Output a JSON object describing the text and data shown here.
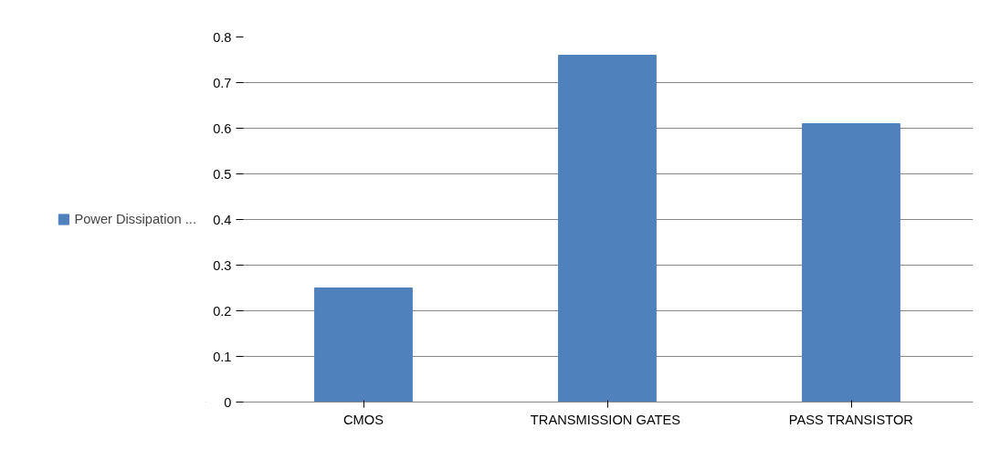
{
  "chart_data": {
    "type": "bar",
    "categories": [
      "CMOS",
      "TRANSMISSION  GATES",
      "PASS TRANSISTOR"
    ],
    "series": [
      {
        "name": "Power Dissipation ...",
        "color": "#4f81bd",
        "values": [
          0.25,
          0.76,
          0.61
        ]
      }
    ],
    "ylim": [
      0,
      0.8
    ],
    "yticks": [
      0,
      0.1,
      0.2,
      0.3,
      0.4,
      0.5,
      0.6,
      0.7,
      0.8
    ],
    "grid": "y",
    "legend": "left"
  }
}
